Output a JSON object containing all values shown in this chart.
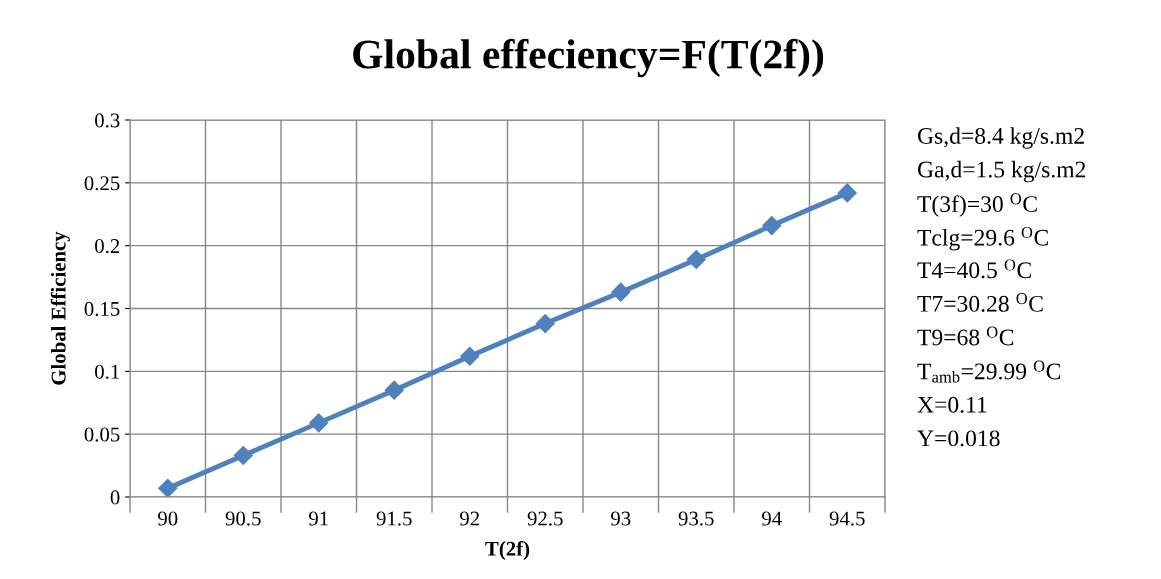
{
  "chart_data": {
    "type": "line",
    "title": "Global effeciency=F(T(2f))",
    "xlabel": "T(2f)",
    "ylabel": "Global Efficiency",
    "categories": [
      "90",
      "90.5",
      "91",
      "91.5",
      "92",
      "92.5",
      "93",
      "93.5",
      "94",
      "94.5"
    ],
    "series": [
      {
        "color": "#4f81bd",
        "values": [
          0.007,
          0.033,
          0.059,
          0.085,
          0.112,
          0.138,
          0.163,
          0.189,
          0.216,
          0.242
        ]
      }
    ],
    "ylim": [
      0,
      0.3
    ],
    "yticks": [
      0,
      0.05,
      0.1,
      0.15,
      0.2,
      0.25,
      0.3
    ],
    "grid": true,
    "legend": false,
    "marker": "diamond",
    "line_style": "solid",
    "annotations": [
      "Gs,d=8.4 kg/s.m2",
      "Ga,d=1.5 kg/s.m2",
      "T(3f)=30 $^{O}$C",
      "Tclg=29.6 $^{O}$C",
      "T4=40.5 $^{O}$C",
      "T7=30.28 $^{O}$C",
      "T9=68 $^{O}$C",
      "T$_{amb}$=29.99 $^{O}$C",
      "X=0.11",
      "Y=0.018"
    ]
  }
}
